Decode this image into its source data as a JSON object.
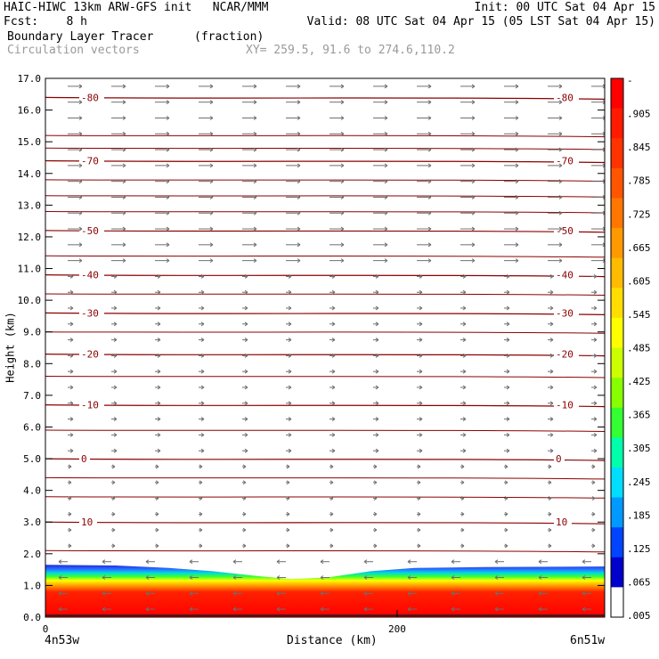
{
  "header": {
    "line1_left": "HAIC-HIWC 13km ARW-GFS init   NCAR/MMM",
    "line1_right": "Init: 00 UTC Sat 04 Apr 15",
    "line2_left": "Fcst:    8 h",
    "line2_right": "Valid: 08 UTC Sat 04 Apr 15 (05 LST Sat 04 Apr 15)",
    "field_name": "Boundary Layer Tracer",
    "field_units": "(fraction)",
    "vector_name": "Circulation vectors",
    "xy_text": "XY= 259.5, 91.6 to 274.6,110.2"
  },
  "chart_data": {
    "type": "heatmap",
    "title": "Boundary Layer Tracer",
    "units": "(fraction)",
    "ylabel": "Height (km)",
    "xlabel": "Distance (km)",
    "ylim": [
      0,
      17
    ],
    "yticks": [
      "0.0",
      "1.0",
      "2.0",
      "3.0",
      "4.0",
      "5.0",
      "6.0",
      "7.0",
      "8.0",
      "9.0",
      "10.0",
      "11.0",
      "12.0",
      "13.0",
      "14.0",
      "15.0",
      "16.0",
      "17.0"
    ],
    "xlim": [
      0,
      318
    ],
    "xticks": [
      {
        "value": 0,
        "label": "0"
      },
      {
        "value": 200,
        "label": "200"
      }
    ],
    "x_endpoint_labels": {
      "left": "4n53w",
      "right": "6n51w"
    },
    "colorbar": {
      "labels": [
        "-",
        ".905",
        ".845",
        ".785",
        ".725",
        ".665",
        ".605",
        ".545",
        ".485",
        ".425",
        ".365",
        ".305",
        ".245",
        ".185",
        ".125",
        ".065",
        ".005"
      ],
      "colors": [
        "#ff0000",
        "#ff1a00",
        "#ff3300",
        "#ff5500",
        "#ff7700",
        "#ff9900",
        "#ffbb00",
        "#ffdd00",
        "#ffff00",
        "#ccff00",
        "#88ff00",
        "#33ff33",
        "#00ffaa",
        "#00ddff",
        "#0099ff",
        "#0044ff",
        "#0000cc",
        "#ffffff"
      ]
    },
    "tracer_top_km": [
      {
        "x": 0,
        "y": 1.65
      },
      {
        "x": 40,
        "y": 1.63
      },
      {
        "x": 70,
        "y": 1.55
      },
      {
        "x": 95,
        "y": 1.45
      },
      {
        "x": 120,
        "y": 1.3
      },
      {
        "x": 140,
        "y": 1.2
      },
      {
        "x": 160,
        "y": 1.25
      },
      {
        "x": 185,
        "y": 1.45
      },
      {
        "x": 210,
        "y": 1.55
      },
      {
        "x": 250,
        "y": 1.58
      },
      {
        "x": 318,
        "y": 1.6
      }
    ],
    "temperature_contours": [
      {
        "label": "-80",
        "y": 16.4
      },
      {
        "label": "-70",
        "y": 14.4
      },
      {
        "label": "-50",
        "y": 12.2
      },
      {
        "label": "-40",
        "y": 10.8
      },
      {
        "label": "-30",
        "y": 9.6
      },
      {
        "label": "-20",
        "y": 8.3
      },
      {
        "label": "-10",
        "y": 6.7
      },
      {
        "label": "0",
        "y": 5.0
      },
      {
        "label": "10",
        "y": 3.0
      }
    ],
    "unlabeled_contours_km": [
      15.2,
      14.8,
      13.8,
      13.3,
      12.8,
      11.4,
      10.2,
      9.0,
      7.6,
      5.9,
      4.4,
      3.8,
      2.1
    ]
  }
}
